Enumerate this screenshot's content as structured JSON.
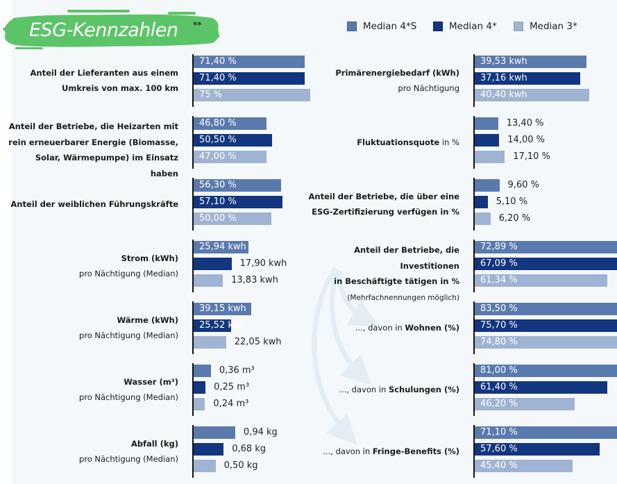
{
  "title": {
    "text": "ESG-Kennzahlen",
    "footnote_mark": "**",
    "badge_color": "#5cc468"
  },
  "legend": [
    {
      "label": "Median 4*S",
      "color": "#5a7aae"
    },
    {
      "label": "Median 4*",
      "color": "#12367f"
    },
    {
      "label": "Median 3*",
      "color": "#9fb3d2"
    }
  ],
  "chart_data": {
    "type": "bar",
    "orientation": "horizontal",
    "title": "ESG-Kennzahlen**",
    "series_names": [
      "Median 4*S",
      "Median 4*",
      "Median 3*"
    ],
    "series_colors": [
      "#5a7aae",
      "#12367f",
      "#9fb3d2"
    ],
    "columns": [
      {
        "groups": [
          {
            "label_lines": [
              [
                {
                  "t": "Anteil der Lieferanten aus einem",
                  "b": true
                }
              ],
              [
                {
                  "t": "Umkreis von max. 100 km",
                  "b": true
                }
              ]
            ],
            "values": [
              71.4,
              71.4,
              75
            ],
            "value_labels": [
              "71,40 %",
              "71,40 %",
              "75 %"
            ],
            "label_inside": [
              true,
              true,
              true
            ],
            "scale_max": 100
          },
          {
            "label_lines": [
              [
                {
                  "t": "Anteil der Betriebe, die Heizarten mit",
                  "b": true
                }
              ],
              [
                {
                  "t": "rein erneuerbarer Energie (Biomasse,",
                  "b": true
                }
              ],
              [
                {
                  "t": "Solar, Wärmepumpe) im Einsatz haben",
                  "b": true
                }
              ]
            ],
            "values": [
              46.8,
              50.5,
              47.0
            ],
            "value_labels": [
              "46,80 %",
              "50,50 %",
              "47,00 %"
            ],
            "label_inside": [
              true,
              true,
              true
            ],
            "scale_max": 100
          },
          {
            "label_lines": [
              [
                {
                  "t": "Anteil der weiblichen Führungskräfte",
                  "b": true
                }
              ]
            ],
            "values": [
              56.3,
              57.1,
              50.0
            ],
            "value_labels": [
              "56,30 %",
              "57,10 %",
              "50,00 %"
            ],
            "label_inside": [
              true,
              true,
              true
            ],
            "scale_max": 100
          },
          {
            "label_lines": [
              [
                {
                  "t": "Strom (kWh)",
                  "b": true
                }
              ],
              [
                {
                  "t": "pro Nächtigung (Median)",
                  "b": false
                }
              ]
            ],
            "values": [
              25.94,
              17.9,
              13.83
            ],
            "value_labels": [
              "25,94 kwh",
              "17,90 kwh",
              "13,83 kwh"
            ],
            "label_inside": [
              true,
              false,
              false
            ],
            "scale_max": 73
          },
          {
            "label_lines": [
              [
                {
                  "t": "Wärme (kWh)",
                  "b": true
                }
              ],
              [
                {
                  "t": "pro Nächtigung (Median)",
                  "b": false
                }
              ]
            ],
            "values": [
              39.15,
              25.52,
              22.05
            ],
            "value_labels": [
              "39,15 kwh",
              "25,52 kwh",
              "22,05 kwh"
            ],
            "label_inside": [
              true,
              true,
              false
            ],
            "scale_max": 105
          },
          {
            "label_lines": [
              [
                {
                  "t": "Wasser (m³)",
                  "b": true
                }
              ],
              [
                {
                  "t": "pro Nächtigung (Median)",
                  "b": false
                }
              ]
            ],
            "values": [
              0.36,
              0.25,
              0.24
            ],
            "value_labels": [
              "0,36 m³",
              "0,25 m³",
              "0,24 m³"
            ],
            "label_inside": [
              false,
              false,
              false
            ],
            "scale_max": 3.2
          },
          {
            "label_lines": [
              [
                {
                  "t": "Abfall (kg)",
                  "b": true
                }
              ],
              [
                {
                  "t": "pro Nächtigung (Median)",
                  "b": false
                }
              ]
            ],
            "values": [
              0.94,
              0.68,
              0.5
            ],
            "value_labels": [
              "0,94 kg",
              "0,68 kg",
              "0,50 kg"
            ],
            "label_inside": [
              false,
              false,
              false
            ],
            "scale_max": 3.5
          }
        ]
      },
      {
        "groups": [
          {
            "label_lines": [
              [
                {
                  "t": "Primärenergiebedarf (kWh)",
                  "b": true
                }
              ],
              [
                {
                  "t": "pro Nächtigung",
                  "b": false
                }
              ]
            ],
            "values": [
              39.53,
              37.16,
              40.4
            ],
            "value_labels": [
              "39,53 kwh",
              "37,16 kwh",
              "40,40 kwh"
            ],
            "label_inside": [
              true,
              true,
              true
            ],
            "scale_max": 55
          },
          {
            "label_lines": [
              [
                {
                  "t": "Fluktuationsquote",
                  "b": true
                },
                {
                  "t": " in %",
                  "b": false
                }
              ]
            ],
            "values": [
              13.4,
              14.0,
              17.1
            ],
            "value_labels": [
              "13,40 %",
              "14,00 %",
              "17,10 %"
            ],
            "label_inside": [
              false,
              false,
              false
            ],
            "scale_max": 88
          },
          {
            "label_lines": [
              [
                {
                  "t": "Anteil der Betriebe, die über eine",
                  "b": true
                }
              ],
              [
                {
                  "t": "ESG-Zertifizierung verfügen in %",
                  "b": true
                }
              ]
            ],
            "values": [
              9.6,
              5.1,
              6.2
            ],
            "value_labels": [
              "9,60 %",
              "5,10 %",
              "6,20 %"
            ],
            "label_inside": [
              false,
              false,
              false
            ],
            "scale_max": 60
          },
          {
            "label_lines": [
              [
                {
                  "t": "Anteil der Betriebe, die Investitionen",
                  "b": true
                }
              ],
              [
                {
                  "t": "in Beschäftigte tätigen in %",
                  "b": true
                }
              ],
              [
                {
                  "t": "(Mehrfachnennungen möglich)",
                  "b": false,
                  "small": true
                }
              ]
            ],
            "values": [
              72.89,
              67.09,
              61.34
            ],
            "value_labels": [
              "72,89 %",
              "67,09 %",
              "61,34 %"
            ],
            "label_inside": [
              true,
              true,
              true
            ],
            "scale_max": 72
          },
          {
            "label_lines": [
              [
                {
                  "t": "..., davon in ",
                  "b": false
                },
                {
                  "t": "Wohnen (%)",
                  "b": true
                }
              ]
            ],
            "values": [
              83.5,
              75.7,
              74.8
            ],
            "value_labels": [
              "83,50 %",
              "75,70 %",
              "74,80 %"
            ],
            "label_inside": [
              true,
              true,
              true
            ],
            "scale_max": 72
          },
          {
            "label_lines": [
              [
                {
                  "t": "..., davon in ",
                  "b": false
                },
                {
                  "t": "Schulungen (%)",
                  "b": true
                }
              ]
            ],
            "values": [
              81.0,
              61.4,
              46.2
            ],
            "value_labels": [
              "81,00 %",
              "61,40 %",
              "46,20 %"
            ],
            "label_inside": [
              true,
              true,
              true
            ],
            "scale_max": 72
          },
          {
            "label_lines": [
              [
                {
                  "t": "..., davon in ",
                  "b": false
                },
                {
                  "t": "Fringe-Benefits (%)",
                  "b": true
                }
              ]
            ],
            "values": [
              71.1,
              57.6,
              45.4
            ],
            "value_labels": [
              "71,10 %",
              "57,60 %",
              "45,40 %"
            ],
            "label_inside": [
              true,
              true,
              true
            ],
            "scale_max": 72
          }
        ]
      }
    ]
  }
}
